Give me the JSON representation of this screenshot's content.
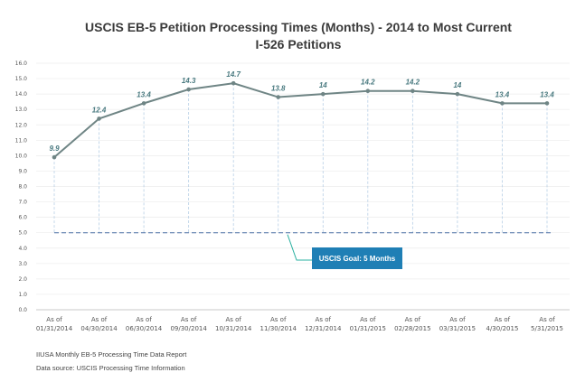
{
  "chart_data": {
    "type": "line",
    "title_line1": "USCIS EB-5 Petition Processing Times (Months) - 2014 to Most Current",
    "title_line2": "I-526 Petitions",
    "categories": [
      {
        "line1": "As of",
        "line2": "01/31/2014"
      },
      {
        "line1": "As of",
        "line2": "04/30/2014"
      },
      {
        "line1": "As of",
        "line2": "06/30/2014"
      },
      {
        "line1": "As of",
        "line2": "09/30/2014"
      },
      {
        "line1": "As of",
        "line2": "10/31/2014"
      },
      {
        "line1": "As of",
        "line2": "11/30/2014"
      },
      {
        "line1": "As of",
        "line2": "12/31/2014"
      },
      {
        "line1": "As of",
        "line2": "01/31/2015"
      },
      {
        "line1": "As of",
        "line2": "02/28/2015"
      },
      {
        "line1": "As of",
        "line2": "03/31/2015"
      },
      {
        "line1": "As of",
        "line2": "4/30/2015"
      },
      {
        "line1": "As of",
        "line2": "5/31/2015"
      }
    ],
    "values": [
      9.9,
      12.4,
      13.4,
      14.3,
      14.7,
      13.8,
      14,
      14.2,
      14.2,
      14,
      13.4,
      13.4
    ],
    "data_labels": [
      "9.9",
      "12.4",
      "13.4",
      "14.3",
      "14.7",
      "13.8",
      "14",
      "14.2",
      "14.2",
      "14",
      "13.4",
      "13.4"
    ],
    "ylim": [
      0,
      16
    ],
    "yticks": [
      "0.0",
      "1.0",
      "2.0",
      "3.0",
      "4.0",
      "5.0",
      "6.0",
      "7.0",
      "8.0",
      "9.0",
      "10.0",
      "11.0",
      "12.0",
      "13.0",
      "14.0",
      "15.0",
      "16.0"
    ],
    "goal_value": 5,
    "goal_label": "USCIS Goal: 5 Months",
    "line_color": "#6f8585",
    "goal_color": "#1f7fb5",
    "annotation_color": "#2ab0a0",
    "notes": [
      "IIUSA Monthly EB-5 Processing Time Data Report",
      "Data source: USCIS Processing Time Information"
    ]
  }
}
